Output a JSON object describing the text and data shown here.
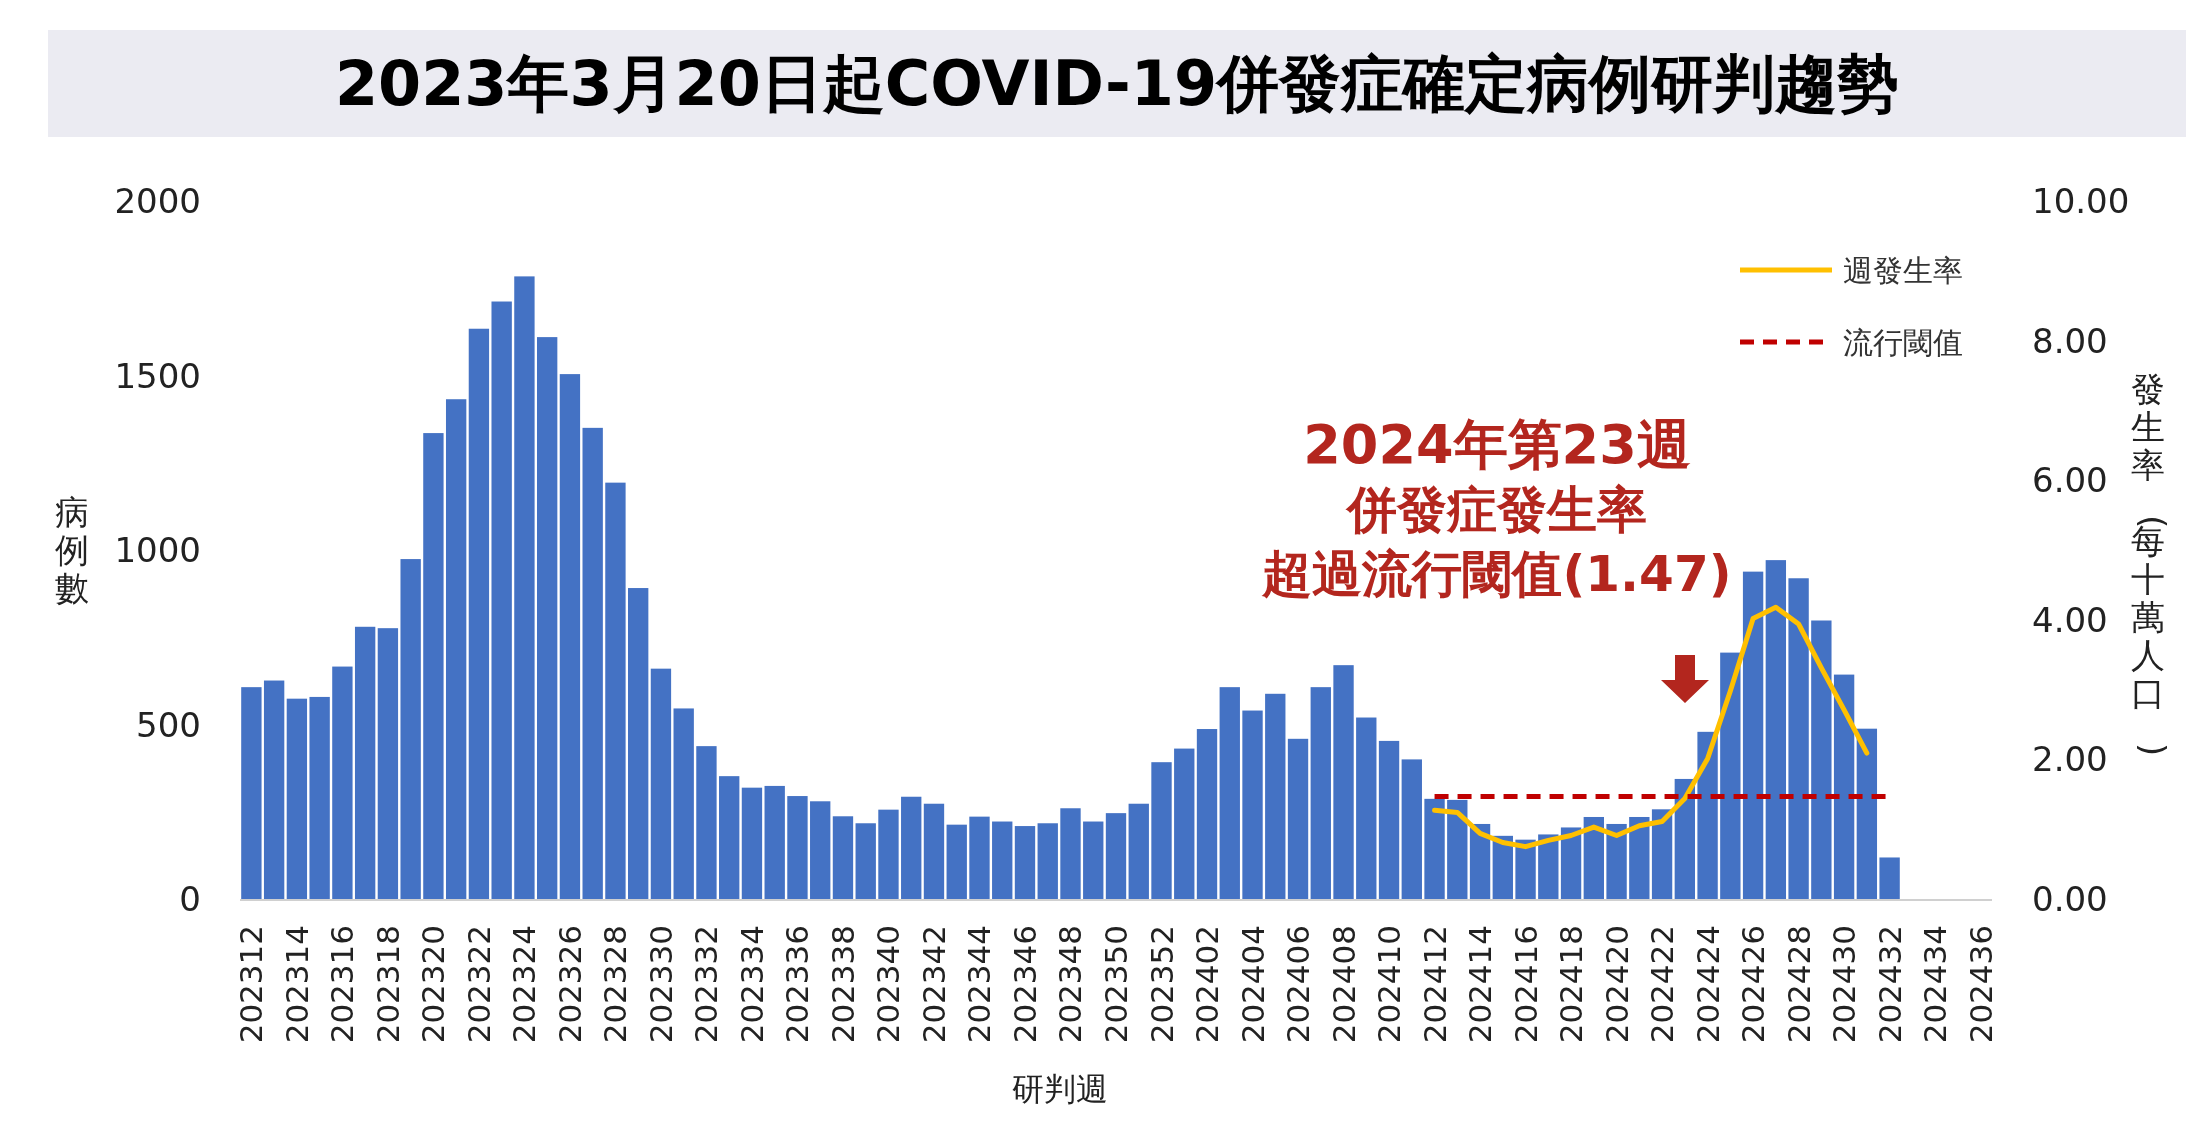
{
  "chart_data": {
    "type": "bar",
    "title": "2023年3月20日起COVID-19併發症確定病例研判趨勢",
    "xlabel": "研判週",
    "ylabel": "病例數",
    "y2label": "發生率(每十萬人口)",
    "categories": [
      "202312",
      null,
      "202314",
      null,
      "202316",
      null,
      "202318",
      null,
      "202320",
      null,
      "202322",
      null,
      "202324",
      null,
      "202326",
      null,
      "202328",
      null,
      "202330",
      null,
      "202332",
      null,
      "202334",
      null,
      "202336",
      null,
      "202338",
      null,
      "202340",
      null,
      "202342",
      null,
      "202344",
      null,
      "202346",
      null,
      "202348",
      null,
      "202350",
      null,
      "202352",
      null,
      "202402",
      null,
      "202404",
      null,
      "202406",
      null,
      "202408",
      null,
      "202410",
      null,
      "202412",
      null,
      "202414",
      null,
      "202416",
      null,
      "202418",
      null,
      "202420",
      null,
      "202422",
      null,
      "202424",
      null,
      "202426",
      null,
      "202428",
      null,
      "202430",
      null,
      "202432",
      null,
      "202434",
      null,
      "202436"
    ],
    "series": [
      {
        "color": "#4472c4",
        "values": [
          607,
          626,
          574,
          579,
          666,
          780,
          776,
          974,
          1335,
          1432,
          1634,
          1712,
          1784,
          1610,
          1504,
          1350,
          1193,
          891,
          660,
          546,
          438,
          352,
          319,
          324,
          295,
          280,
          237,
          217,
          256,
          293,
          273,
          213,
          236,
          222,
          209,
          217,
          260,
          222,
          246,
          273,
          392,
          431,
          487,
          607,
          540,
          588,
          459,
          607,
          670,
          520,
          453,
          400,
          287,
          284,
          215,
          181,
          170,
          185,
          205,
          235,
          215,
          235,
          257,
          344,
          479,
          706,
          938,
          971,
          919,
          798,
          643,
          488,
          119,
          null,
          null,
          null,
          null
        ]
      },
      {
        "type": "line",
        "name": "週發生率",
        "axis": "y2",
        "color": "#ffc000",
        "line_style": "solid",
        "values": [
          null,
          null,
          null,
          null,
          null,
          null,
          null,
          null,
          null,
          null,
          null,
          null,
          null,
          null,
          null,
          null,
          null,
          null,
          null,
          null,
          null,
          null,
          null,
          null,
          null,
          null,
          null,
          null,
          null,
          null,
          null,
          null,
          null,
          null,
          null,
          null,
          null,
          null,
          null,
          null,
          null,
          null,
          null,
          null,
          null,
          null,
          null,
          null,
          null,
          null,
          null,
          null,
          1.27,
          1.24,
          0.94,
          0.81,
          0.75,
          0.84,
          0.91,
          1.03,
          0.91,
          1.05,
          1.11,
          1.44,
          2.01,
          2.98,
          4.02,
          4.18,
          3.94,
          3.31,
          2.71,
          2.09,
          null,
          null,
          null,
          null,
          null
        ]
      },
      {
        "type": "line",
        "name": "流行閾值",
        "axis": "y2",
        "color": "#c00000",
        "line_style": "dashed",
        "values": [
          null,
          null,
          null,
          null,
          null,
          null,
          null,
          null,
          null,
          null,
          null,
          null,
          null,
          null,
          null,
          null,
          null,
          null,
          null,
          null,
          null,
          null,
          null,
          null,
          null,
          null,
          null,
          null,
          null,
          null,
          null,
          null,
          null,
          null,
          null,
          null,
          null,
          null,
          null,
          null,
          null,
          null,
          null,
          null,
          null,
          null,
          null,
          null,
          null,
          null,
          null,
          null,
          1.47,
          1.47,
          1.47,
          1.47,
          1.47,
          1.47,
          1.47,
          1.47,
          1.47,
          1.47,
          1.47,
          1.47,
          1.47,
          1.47,
          1.47,
          1.47,
          1.47,
          1.47,
          1.47,
          1.47,
          1.47,
          null,
          null,
          null,
          null
        ]
      }
    ],
    "ylim": [
      0,
      2000
    ],
    "yticks": [
      0,
      500,
      1000,
      1500,
      2000
    ],
    "y2lim": [
      0,
      10
    ],
    "y2ticks": [
      {
        "value": 0,
        "label": "0.00"
      },
      {
        "value": 2,
        "label": "2.00"
      },
      {
        "value": 4,
        "label": "4.00"
      },
      {
        "value": 6,
        "label": "6.00"
      },
      {
        "value": 8,
        "label": "8.00"
      },
      {
        "value": 10,
        "label": "10.00"
      }
    ],
    "legend": "top right",
    "annotations": [
      "2024年第23週",
      "併發症發生率",
      "超過流行閾值(1.47)"
    ]
  }
}
